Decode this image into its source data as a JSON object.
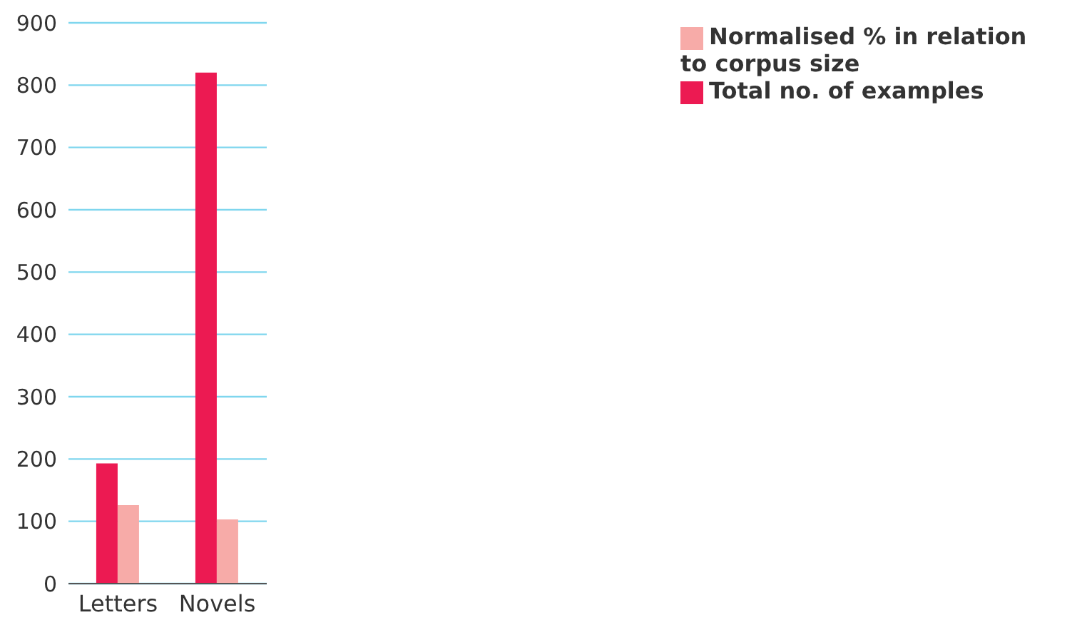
{
  "chart_data": {
    "type": "bar",
    "categories": [
      "Letters",
      "Novels"
    ],
    "series": [
      {
        "name": "Total no. of examples",
        "color": "#ec1a52",
        "values": [
          193,
          820
        ]
      },
      {
        "name": "Normalised % in relation to corpus size",
        "color": "#f7aba8",
        "values": [
          126,
          103
        ]
      }
    ],
    "ylim": [
      0,
      900
    ],
    "yticks": [
      0,
      100,
      200,
      300,
      400,
      500,
      600,
      700,
      800,
      900
    ],
    "grid": "y",
    "legend": "top right"
  }
}
